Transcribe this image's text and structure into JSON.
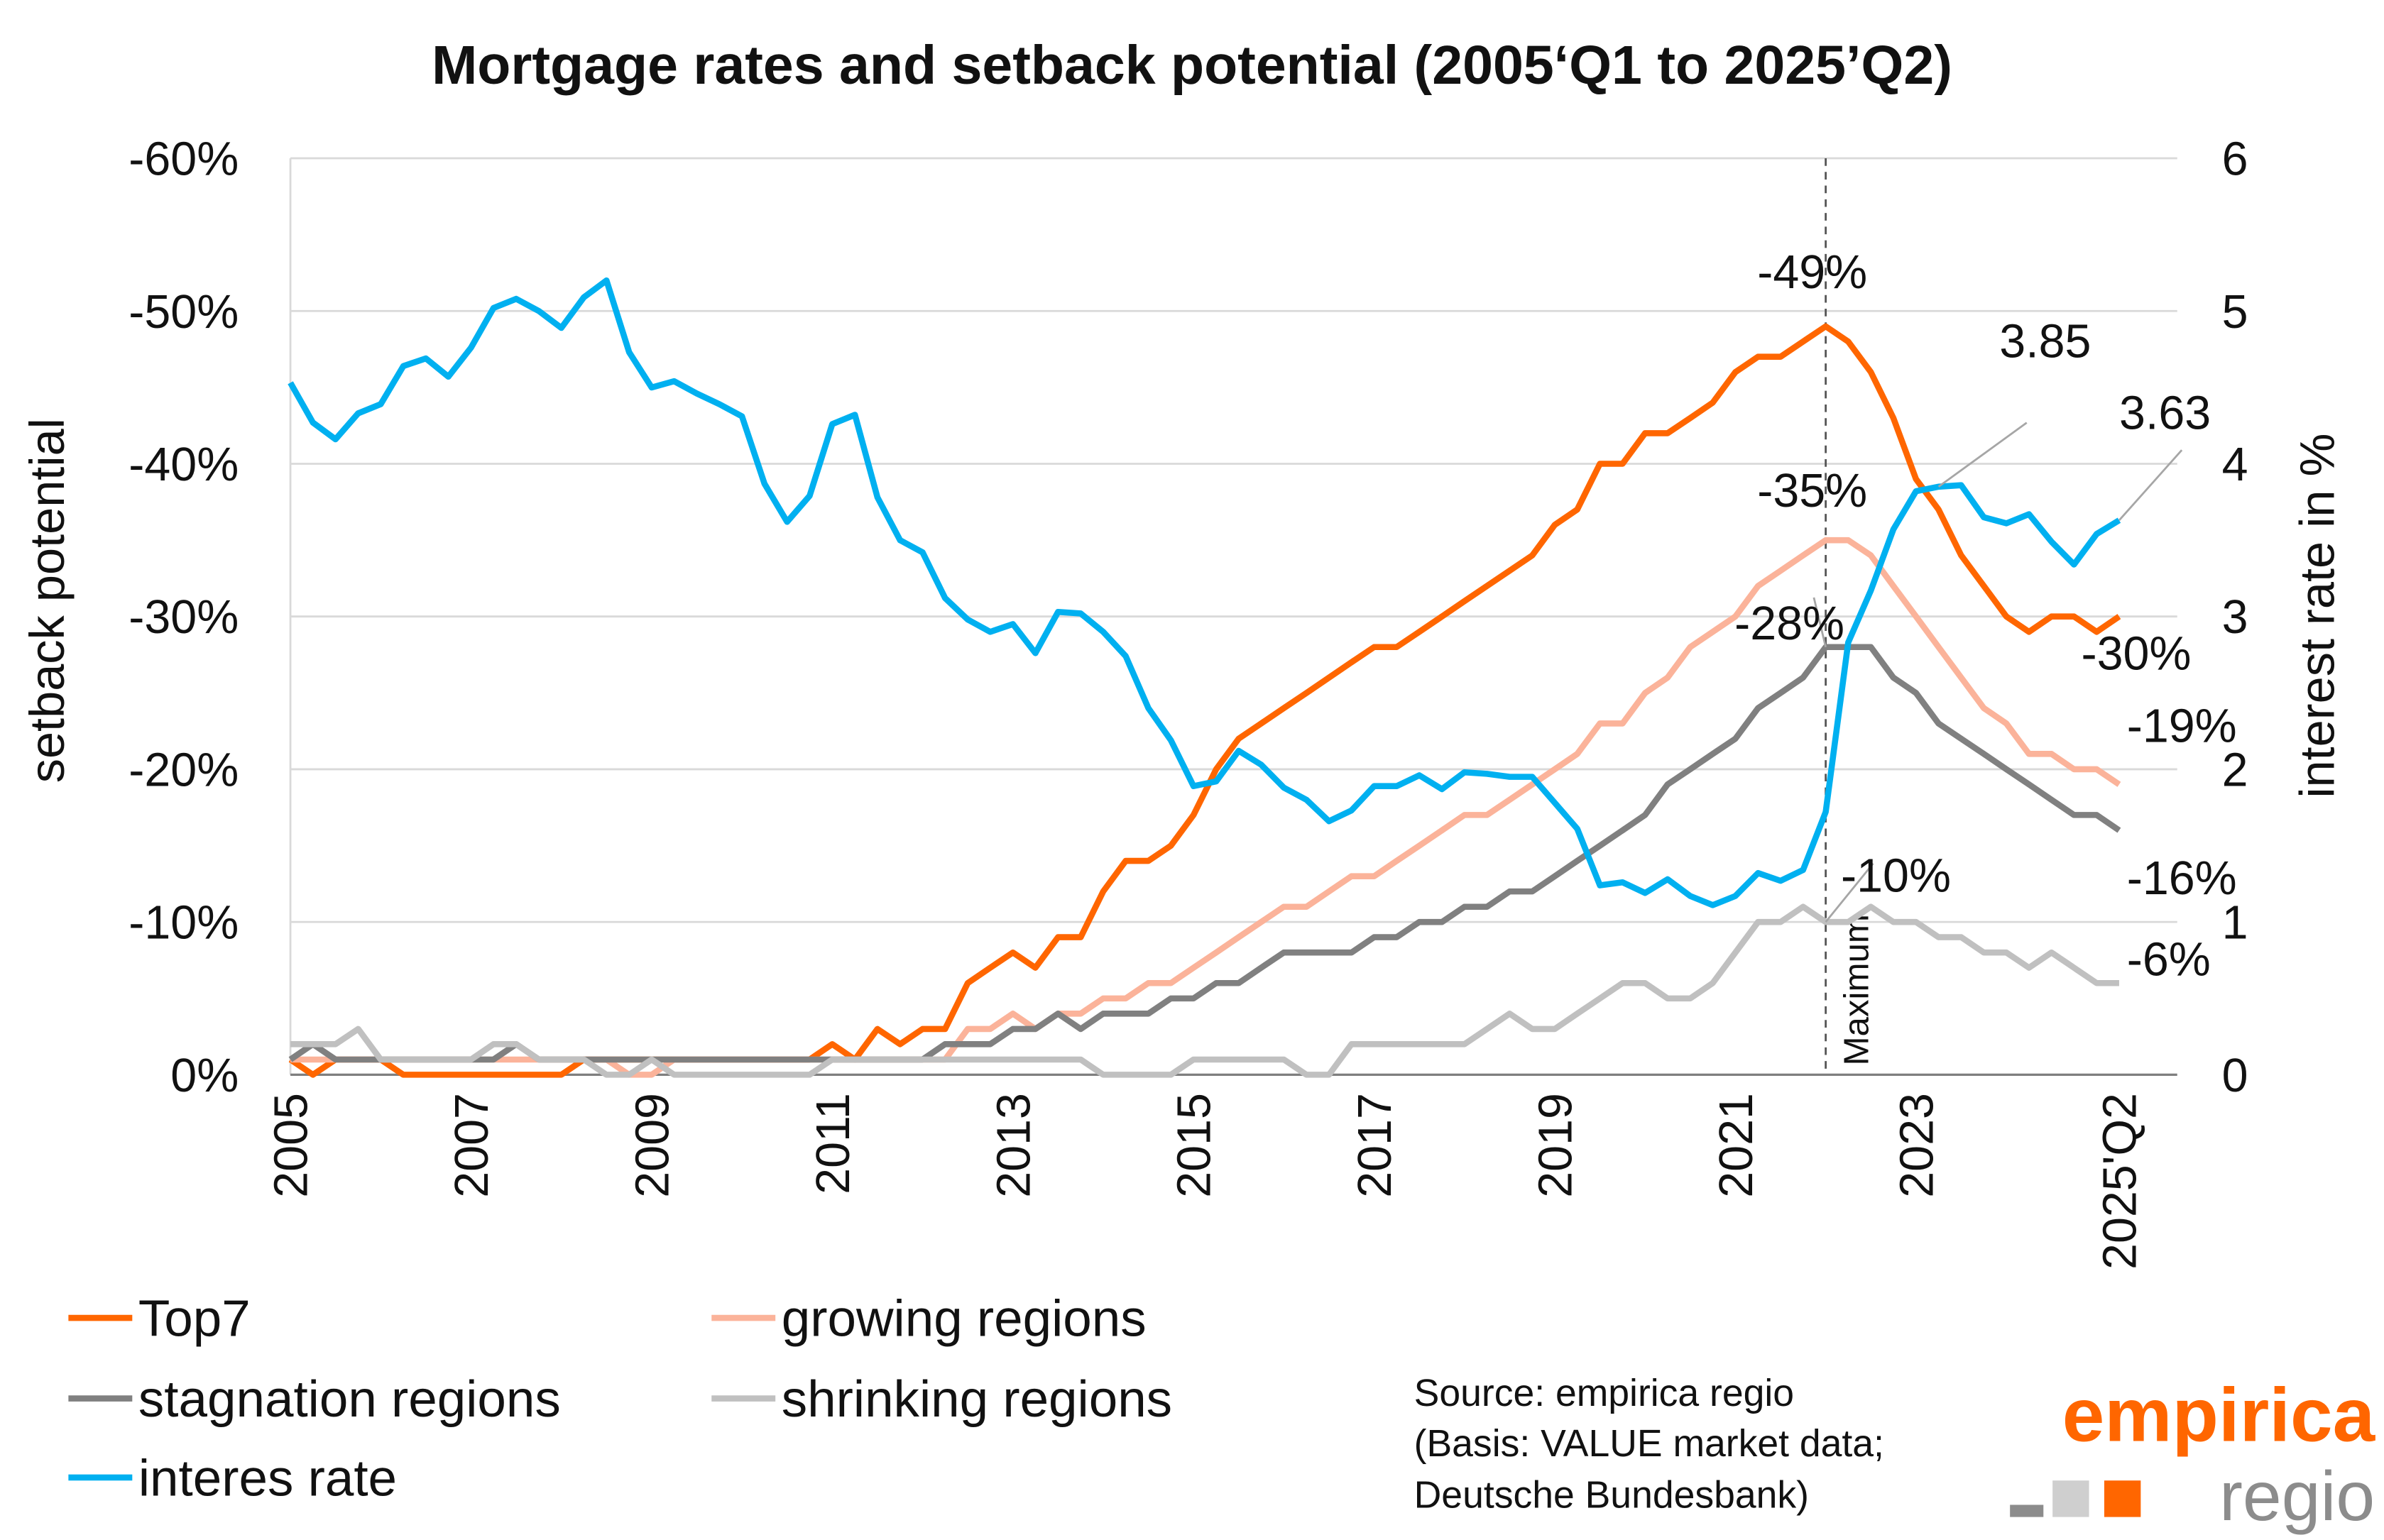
{
  "chart_data": {
    "type": "line",
    "title": "Mortgage rates and setback potential (2005‘Q1 to 2025’Q2)",
    "ylabel": "setback potential",
    "y2label": "interest rate in %",
    "ylim": [
      0,
      -60
    ],
    "y2lim": [
      0,
      6
    ],
    "yticks": [
      "0%",
      "-10%",
      "-20%",
      "-30%",
      "-40%",
      "-50%",
      "-60%"
    ],
    "y2ticks": [
      "0",
      "1",
      "2",
      "3",
      "4",
      "5",
      "6"
    ],
    "xticks": [
      "2005",
      "2007",
      "2009",
      "2011",
      "2013",
      "2015",
      "2017",
      "2019",
      "2021",
      "2023",
      "2025'Q2"
    ],
    "x_start": "2005Q1",
    "x_end": "2025Q2",
    "x_frequency": "quarterly",
    "grid": "horizontal",
    "legend_placement": "bottom",
    "marker_label": "Maximum",
    "marker_x": "2022Q1",
    "series": [
      {
        "name": "Top7",
        "axis": "left",
        "color": "#FF6600",
        "values": [
          -1,
          0,
          -1,
          -1,
          -1,
          0,
          0,
          0,
          0,
          0,
          0,
          0,
          0,
          -1,
          -1,
          -1,
          -1,
          -1,
          -1,
          -1,
          -1,
          -1,
          -1,
          -1,
          -2,
          -1,
          -3,
          -2,
          -3,
          -3,
          -6,
          -7,
          -8,
          -7,
          -9,
          -9,
          -12,
          -14,
          -14,
          -15,
          -17,
          -20,
          -22,
          -23,
          -24,
          -25,
          -26,
          -27,
          -28,
          -28,
          -29,
          -30,
          -31,
          -32,
          -33,
          -34,
          -36,
          -37,
          -40,
          -40,
          -42,
          -42,
          -43,
          -44,
          -46,
          -47,
          -47,
          -48,
          -49,
          -48,
          -46,
          -43,
          -39,
          -37,
          -34,
          -32,
          -30,
          -29,
          -30,
          -30,
          -29,
          -30
        ]
      },
      {
        "name": "growing regions",
        "axis": "left",
        "color": "#FBB39A",
        "values": [
          -1,
          -1,
          -1,
          -1,
          -1,
          -1,
          -1,
          -1,
          -1,
          -1,
          -1,
          -1,
          -1,
          -1,
          -1,
          0,
          0,
          -1,
          -1,
          -1,
          -1,
          -1,
          -1,
          -1,
          -1,
          -1,
          -1,
          -1,
          -1,
          -1,
          -3,
          -3,
          -4,
          -3,
          -4,
          -4,
          -5,
          -5,
          -6,
          -6,
          -7,
          -8,
          -9,
          -10,
          -11,
          -11,
          -12,
          -13,
          -13,
          -14,
          -15,
          -16,
          -17,
          -17,
          -18,
          -19,
          -20,
          -21,
          -23,
          -23,
          -25,
          -26,
          -28,
          -29,
          -30,
          -32,
          -33,
          -34,
          -35,
          -35,
          -34,
          -32,
          -30,
          -28,
          -26,
          -24,
          -23,
          -21,
          -21,
          -20,
          -20,
          -19
        ]
      },
      {
        "name": "stagnation regions",
        "axis": "left",
        "color": "#808080",
        "values": [
          -1,
          -2,
          -1,
          -1,
          -1,
          -1,
          -1,
          -1,
          -1,
          -1,
          -2,
          -1,
          -1,
          -1,
          -1,
          -1,
          -1,
          -1,
          -1,
          -1,
          -1,
          -1,
          -1,
          -1,
          -1,
          -1,
          -1,
          -1,
          -1,
          -2,
          -2,
          -2,
          -3,
          -3,
          -4,
          -3,
          -4,
          -4,
          -4,
          -5,
          -5,
          -6,
          -6,
          -7,
          -8,
          -8,
          -8,
          -8,
          -9,
          -9,
          -10,
          -10,
          -11,
          -11,
          -12,
          -12,
          -13,
          -14,
          -15,
          -16,
          -17,
          -19,
          -20,
          -21,
          -22,
          -24,
          -25,
          -26,
          -28,
          -28,
          -28,
          -26,
          -25,
          -23,
          -22,
          -21,
          -20,
          -19,
          -18,
          -17,
          -17,
          -16
        ]
      },
      {
        "name": "shrinking regions",
        "axis": "left",
        "color": "#C0C0C0",
        "values": [
          -2,
          -2,
          -2,
          -3,
          -1,
          -1,
          -1,
          -1,
          -1,
          -2,
          -2,
          -1,
          -1,
          -1,
          0,
          0,
          -1,
          0,
          0,
          0,
          0,
          0,
          0,
          0,
          -1,
          -1,
          -1,
          -1,
          -1,
          -1,
          -1,
          -1,
          -1,
          -1,
          -1,
          -1,
          0,
          0,
          0,
          0,
          -1,
          -1,
          -1,
          -1,
          -1,
          0,
          0,
          -2,
          -2,
          -2,
          -2,
          -2,
          -2,
          -3,
          -4,
          -3,
          -3,
          -4,
          -5,
          -6,
          -6,
          -5,
          -5,
          -6,
          -8,
          -10,
          -10,
          -11,
          -10,
          -10,
          -11,
          -10,
          -10,
          -9,
          -9,
          -8,
          -8,
          -7,
          -8,
          -7,
          -6,
          -6
        ]
      },
      {
        "name": "interes rate",
        "axis": "right",
        "color": "#00B0F0",
        "values": [
          4.53,
          4.27,
          4.16,
          4.33,
          4.39,
          4.64,
          4.69,
          4.57,
          4.76,
          5.02,
          5.08,
          5.0,
          4.89,
          5.09,
          5.2,
          4.73,
          4.5,
          4.54,
          4.46,
          4.39,
          4.31,
          3.87,
          3.62,
          3.79,
          4.26,
          4.32,
          3.78,
          3.5,
          3.42,
          3.12,
          2.98,
          2.9,
          2.95,
          2.76,
          3.03,
          3.02,
          2.9,
          2.74,
          2.4,
          2.19,
          1.89,
          1.92,
          2.12,
          2.03,
          1.88,
          1.8,
          1.66,
          1.73,
          1.89,
          1.89,
          1.96,
          1.87,
          1.98,
          1.97,
          1.95,
          1.95,
          1.78,
          1.61,
          1.24,
          1.26,
          1.19,
          1.28,
          1.17,
          1.11,
          1.17,
          1.32,
          1.27,
          1.34,
          1.72,
          2.83,
          3.17,
          3.57,
          3.82,
          3.85,
          3.86,
          3.65,
          3.61,
          3.67,
          3.49,
          3.34,
          3.54,
          3.63
        ]
      }
    ],
    "annotations": [
      {
        "text": "-49%",
        "series": "Top7",
        "x": "2022Q1"
      },
      {
        "text": "-35%",
        "series": "growing regions",
        "x": "2022Q1"
      },
      {
        "text": "-28%",
        "series": "stagnation regions",
        "x": "2022Q1"
      },
      {
        "text": "-10%",
        "series": "shrinking regions",
        "x": "2022Q1"
      },
      {
        "text": "3.85",
        "series": "interes rate",
        "x": "2023Q2"
      },
      {
        "text": "3.63",
        "series": "interes rate",
        "x": "2025Q2"
      },
      {
        "text": "-30%",
        "series": "Top7",
        "x": "2025Q2"
      },
      {
        "text": "-19%",
        "series": "growing regions",
        "x": "2025Q2"
      },
      {
        "text": "-16%",
        "series": "stagnation regions",
        "x": "2025Q2"
      },
      {
        "text": "-6%",
        "series": "shrinking regions",
        "x": "2025Q2"
      }
    ]
  },
  "source": {
    "line1": "Source: empirica regio",
    "line2": "(Basis: VALUE market data;",
    "line3": "Deutsche Bundesbank)"
  },
  "logo": {
    "word1": "empirica",
    "word2": "regio",
    "color": "#FF6600"
  }
}
